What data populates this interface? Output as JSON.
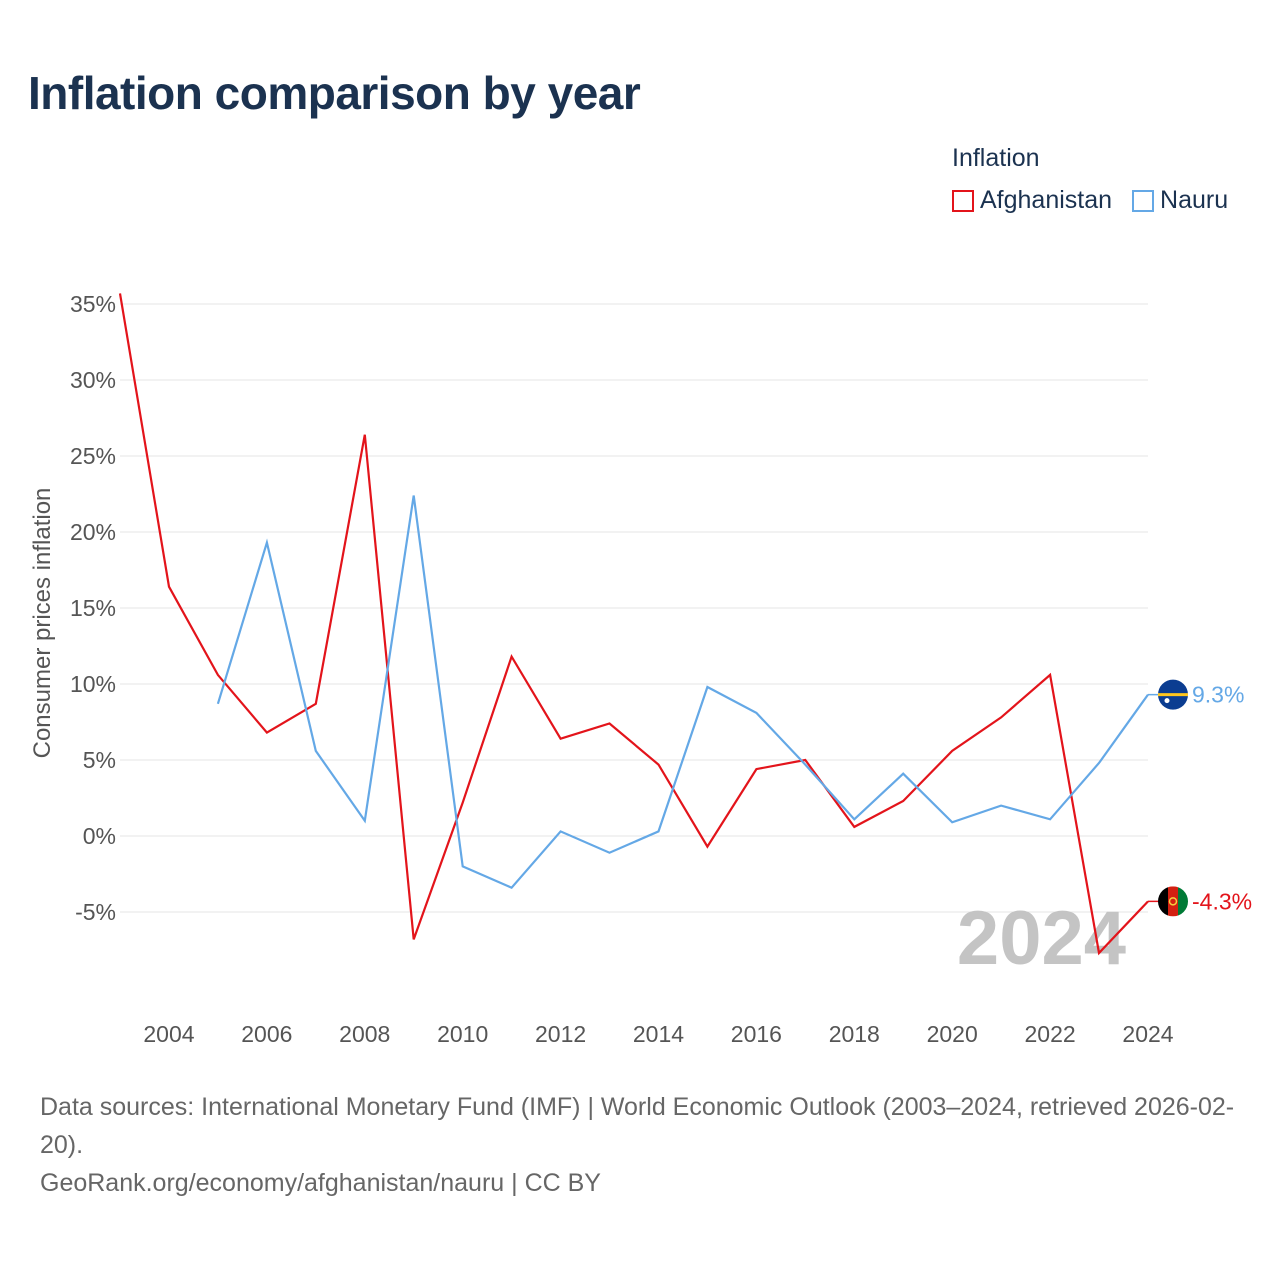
{
  "title": "Inflation comparison by year",
  "legend": {
    "title": "Inflation",
    "items": [
      {
        "label": "Afghanistan",
        "color": "#e3141b"
      },
      {
        "label": "Nauru",
        "color": "#64a8e6"
      }
    ]
  },
  "chart_data": {
    "type": "line",
    "ylabel": "Consumer prices inflation",
    "xlabel": "",
    "ylim": [
      -10,
      37
    ],
    "xlim": [
      2003,
      2024
    ],
    "yticks": [
      -5,
      0,
      5,
      10,
      15,
      20,
      25,
      30,
      35
    ],
    "ytick_labels": [
      "-5%",
      "0%",
      "5%",
      "10%",
      "15%",
      "20%",
      "25%",
      "30%",
      "35%"
    ],
    "xticks": [
      2004,
      2006,
      2008,
      2010,
      2012,
      2014,
      2016,
      2018,
      2020,
      2022,
      2024
    ],
    "xtick_labels": [
      "2004",
      "2006",
      "2008",
      "2010",
      "2012",
      "2014",
      "2016",
      "2018",
      "2020",
      "2022",
      "2024"
    ],
    "grid": true,
    "watermark_year": "2024",
    "series": [
      {
        "name": "Afghanistan",
        "color": "#e3141b",
        "x": [
          2003,
          2004,
          2005,
          2006,
          2007,
          2008,
          2009,
          2010,
          2011,
          2012,
          2013,
          2014,
          2015,
          2016,
          2017,
          2018,
          2019,
          2020,
          2021,
          2022,
          2023,
          2024
        ],
        "values": [
          35.7,
          16.4,
          10.6,
          6.8,
          8.7,
          26.4,
          -6.8,
          2.2,
          11.8,
          6.4,
          7.4,
          4.7,
          -0.7,
          4.4,
          5.0,
          0.6,
          2.3,
          5.6,
          7.8,
          10.6,
          -7.7,
          -4.3
        ],
        "end_label": "-4.3%"
      },
      {
        "name": "Nauru",
        "color": "#64a8e6",
        "x": [
          2005,
          2006,
          2007,
          2008,
          2009,
          2010,
          2011,
          2012,
          2013,
          2014,
          2015,
          2016,
          2017,
          2018,
          2019,
          2020,
          2021,
          2022,
          2023,
          2024
        ],
        "values": [
          8.7,
          19.3,
          5.6,
          1.0,
          22.4,
          -2.0,
          -3.4,
          0.3,
          -1.1,
          0.3,
          9.8,
          8.1,
          4.7,
          1.1,
          4.1,
          0.9,
          2.0,
          1.1,
          4.8,
          9.3
        ],
        "end_label": "9.3%"
      }
    ]
  },
  "footer": {
    "line1": "Data sources: International Monetary Fund (IMF) | World Economic Outlook (2003–2024, retrieved 2026-02-20).",
    "line2": "GeoRank.org/economy/afghanistan/nauru | CC BY"
  }
}
